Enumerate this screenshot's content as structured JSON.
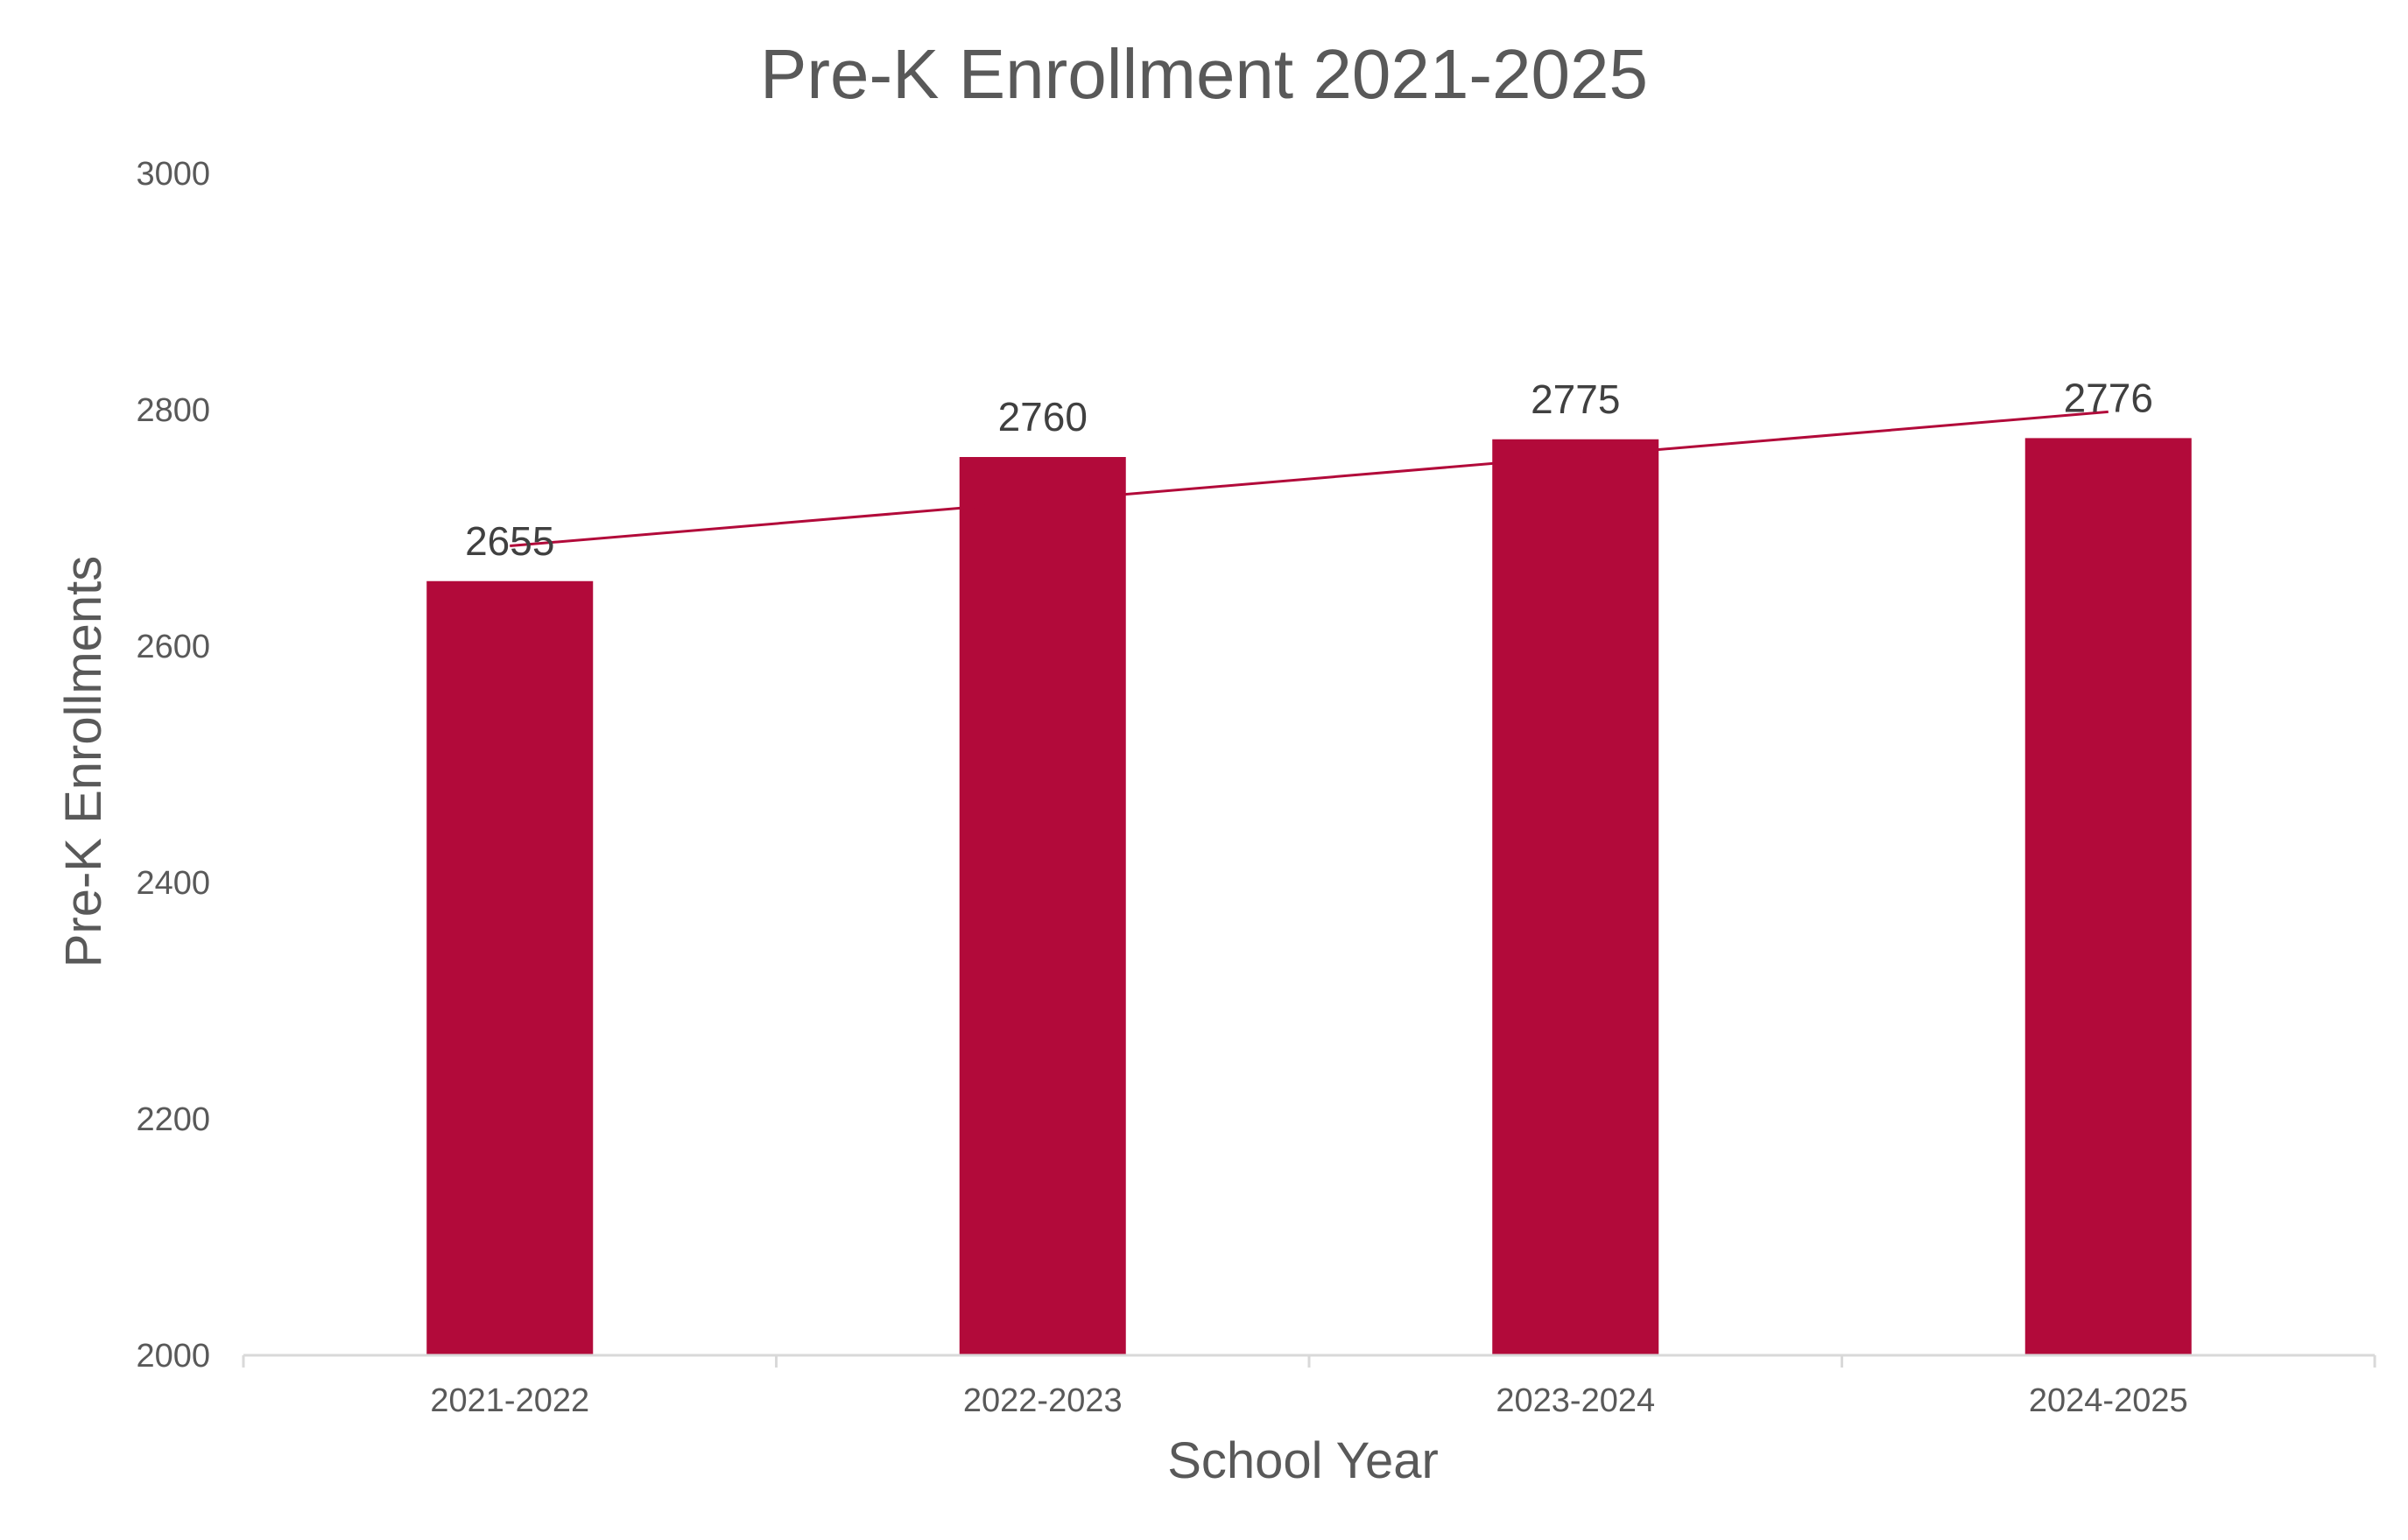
{
  "chart_data": {
    "type": "bar",
    "title": "Pre-K Enrollment 2021-2025",
    "xlabel": "School Year",
    "ylabel": "Pre-K Enrollments",
    "categories": [
      "2021-2022",
      "2022-2023",
      "2023-2024",
      "2024-2025"
    ],
    "values": [
      2655,
      2760,
      2775,
      2776
    ],
    "data_labels": [
      "2655",
      "2760",
      "2775",
      "2776"
    ],
    "ylim": [
      2000,
      3000
    ],
    "yticks": [
      2000,
      2200,
      2400,
      2600,
      2800,
      3000
    ],
    "grid": false,
    "legend": "none",
    "trendline": "linear",
    "colors": {
      "bar": "#B20A3A",
      "trendline": "#B20A3A",
      "axis": "#D9D9D9",
      "text": "#595959"
    }
  }
}
